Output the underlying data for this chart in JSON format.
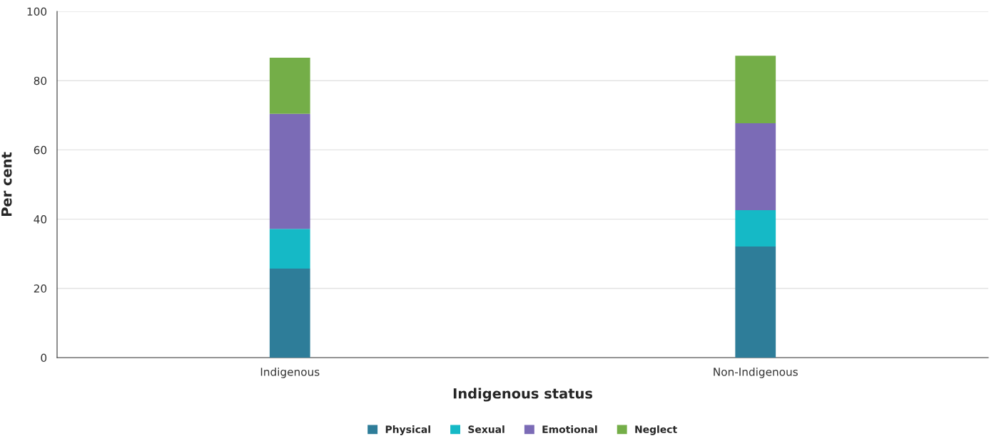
{
  "chart_data": {
    "type": "bar",
    "stacked": true,
    "xlabel": "Indigenous status",
    "ylabel": "Per cent",
    "categories": [
      "Indigenous",
      "Non-Indigenous"
    ],
    "series": [
      {
        "name": "Physical",
        "color": "#2e7d99",
        "values": [
          25.7,
          32.1
        ]
      },
      {
        "name": "Sexual",
        "color": "#15b9c6",
        "values": [
          11.5,
          10.5
        ]
      },
      {
        "name": "Emotional",
        "color": "#7b6bb6",
        "values": [
          33.2,
          25.1
        ]
      },
      {
        "name": "Neglect",
        "color": "#74ae48",
        "values": [
          16.2,
          19.5
        ]
      }
    ],
    "ylim": [
      0,
      100
    ],
    "yticks": [
      0,
      20,
      40,
      60,
      80,
      100
    ],
    "grid": "y",
    "legend": "bottom"
  }
}
